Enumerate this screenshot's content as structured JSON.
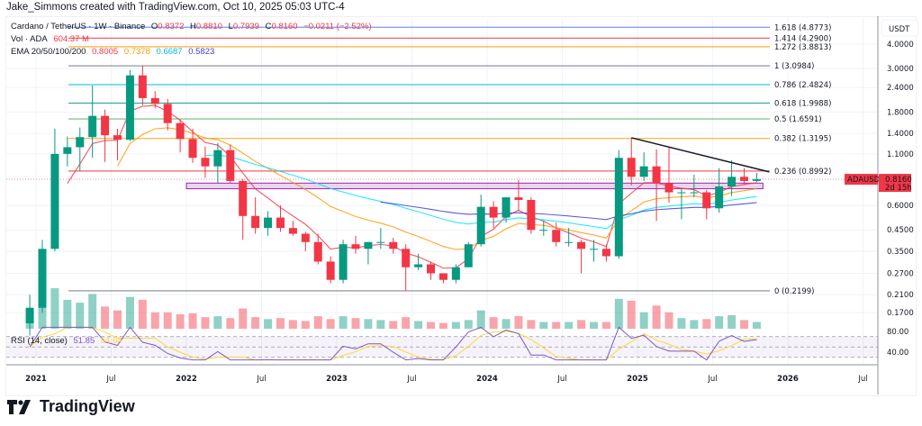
{
  "credit": "Jake_Simmons created with TradingView.com, Oct 10, 2025 05:03 UTC-4",
  "legend": {
    "symbol": "Cardano / TetherUS · 1W · Binance",
    "open_label": "O",
    "open": "0.8372",
    "high_label": "H",
    "high": "0.8810",
    "low_label": "L",
    "low": "0.7939",
    "close_label": "C",
    "close": "0.8160",
    "change": "−0.0211 (−2.52%)",
    "vol_label": "Vol · ADA",
    "vol": "604.37 M",
    "ema_label": "EMA 20/50/100/200",
    "ema_values": [
      "0.8005",
      "0.7378",
      "0.6687",
      "0.5823"
    ],
    "rsi_label": "RSI (14, close)",
    "rsi": "51.85",
    "rsi_ma": "54.64"
  },
  "price_axis": {
    "currency": "USDT",
    "ticks": [
      "4.0000",
      "3.0000",
      "2.4000",
      "1.8000",
      "1.4000",
      "1.1000",
      "0.6000",
      "0.4500",
      "0.3500",
      "0.2700",
      "0.2100",
      "0.1700"
    ],
    "symbol_tag": "ADAUSDT",
    "last_price": "0.8160",
    "countdown": "2d 15h",
    "rsi_ticks": [
      "80.00",
      "40.00"
    ]
  },
  "time_axis": [
    "2021",
    "Jul",
    "2022",
    "Jul",
    "2023",
    "Jul",
    "2024",
    "Jul",
    "2025",
    "Jul",
    "2026",
    "Jul"
  ],
  "brand": "TradingView",
  "colors": {
    "up": "#089981",
    "down": "#f23645",
    "ema20": "#f23645",
    "ema50": "#ff9800",
    "ema100": "#00e5ff",
    "ema200": "#3d3dd8",
    "rsi": "#7e57c2",
    "rsi_ma": "#fdd835",
    "zone": "#9c27b0",
    "trend": "#131722"
  },
  "chart_data": {
    "type": "candlestick",
    "title": "Cardano / TetherUS · 1W · Binance",
    "y_scale": "log",
    "ylim": [
      0.16,
      5.0
    ],
    "grid": true,
    "periods": [
      "2020-12",
      "2021-01",
      "2021-02",
      "2021-03",
      "2021-04",
      "2021-05",
      "2021-06",
      "2021-07",
      "2021-08",
      "2021-09",
      "2021-10",
      "2021-11",
      "2021-12",
      "2022-01",
      "2022-02",
      "2022-03",
      "2022-04",
      "2022-05",
      "2022-06",
      "2022-07",
      "2022-08",
      "2022-09",
      "2022-10",
      "2022-11",
      "2022-12",
      "2023-01",
      "2023-02",
      "2023-03",
      "2023-04",
      "2023-05",
      "2023-06",
      "2023-07",
      "2023-08",
      "2023-09",
      "2023-10",
      "2023-11",
      "2023-12",
      "2024-01",
      "2024-02",
      "2024-03",
      "2024-04",
      "2024-05",
      "2024-06",
      "2024-07",
      "2024-08",
      "2024-09",
      "2024-10",
      "2024-11",
      "2024-12",
      "2025-01",
      "2025-02",
      "2025-03",
      "2025-04",
      "2025-05",
      "2025-06",
      "2025-07",
      "2025-08",
      "2025-09",
      "2025-10"
    ],
    "ohlc": [
      [
        0.15,
        0.21,
        0.13,
        0.18
      ],
      [
        0.18,
        0.4,
        0.17,
        0.36
      ],
      [
        0.36,
        1.48,
        0.35,
        1.1
      ],
      [
        1.1,
        1.35,
        0.95,
        1.19
      ],
      [
        1.19,
        1.5,
        0.9,
        1.34
      ],
      [
        1.34,
        2.46,
        1.05,
        1.72
      ],
      [
        1.72,
        1.85,
        1.0,
        1.37
      ],
      [
        1.37,
        1.48,
        1.02,
        1.3
      ],
      [
        1.3,
        2.95,
        1.28,
        2.77
      ],
      [
        2.77,
        3.1,
        1.95,
        2.12
      ],
      [
        2.12,
        2.3,
        1.88,
        1.98
      ],
      [
        1.98,
        2.1,
        1.45,
        1.58
      ],
      [
        1.58,
        1.65,
        1.12,
        1.31
      ],
      [
        1.31,
        1.48,
        0.99,
        1.05
      ],
      [
        1.05,
        1.2,
        0.83,
        0.95
      ],
      [
        0.95,
        1.25,
        0.78,
        1.15
      ],
      [
        1.15,
        1.23,
        0.78,
        0.8
      ],
      [
        0.8,
        0.82,
        0.4,
        0.53
      ],
      [
        0.53,
        0.66,
        0.43,
        0.46
      ],
      [
        0.46,
        0.56,
        0.42,
        0.52
      ],
      [
        0.52,
        0.6,
        0.44,
        0.46
      ],
      [
        0.46,
        0.5,
        0.42,
        0.43
      ],
      [
        0.43,
        0.44,
        0.35,
        0.39
      ],
      [
        0.39,
        0.43,
        0.3,
        0.31
      ],
      [
        0.31,
        0.33,
        0.24,
        0.25
      ],
      [
        0.25,
        0.4,
        0.24,
        0.38
      ],
      [
        0.38,
        0.42,
        0.34,
        0.36
      ],
      [
        0.36,
        0.39,
        0.3,
        0.39
      ],
      [
        0.39,
        0.46,
        0.36,
        0.39
      ],
      [
        0.39,
        0.41,
        0.34,
        0.36
      ],
      [
        0.36,
        0.38,
        0.22,
        0.29
      ],
      [
        0.29,
        0.34,
        0.28,
        0.3
      ],
      [
        0.3,
        0.31,
        0.25,
        0.27
      ],
      [
        0.27,
        0.27,
        0.24,
        0.25
      ],
      [
        0.25,
        0.3,
        0.24,
        0.29
      ],
      [
        0.29,
        0.39,
        0.29,
        0.38
      ],
      [
        0.38,
        0.68,
        0.37,
        0.59
      ],
      [
        0.59,
        0.63,
        0.46,
        0.52
      ],
      [
        0.52,
        0.66,
        0.49,
        0.66
      ],
      [
        0.66,
        0.81,
        0.56,
        0.64
      ],
      [
        0.64,
        0.66,
        0.43,
        0.45
      ],
      [
        0.45,
        0.5,
        0.42,
        0.45
      ],
      [
        0.45,
        0.49,
        0.37,
        0.39
      ],
      [
        0.39,
        0.46,
        0.37,
        0.39
      ],
      [
        0.39,
        0.4,
        0.27,
        0.36
      ],
      [
        0.36,
        0.4,
        0.31,
        0.36
      ],
      [
        0.36,
        0.38,
        0.31,
        0.33
      ],
      [
        0.33,
        1.15,
        0.32,
        1.05
      ],
      [
        1.05,
        1.33,
        0.76,
        0.84
      ],
      [
        0.84,
        1.12,
        0.8,
        0.95
      ],
      [
        0.95,
        1.16,
        0.5,
        0.78
      ],
      [
        0.78,
        1.2,
        0.62,
        0.7
      ],
      [
        0.7,
        0.73,
        0.51,
        0.7
      ],
      [
        0.7,
        0.86,
        0.66,
        0.7
      ],
      [
        0.7,
        0.72,
        0.51,
        0.58
      ],
      [
        0.58,
        0.93,
        0.55,
        0.75
      ],
      [
        0.75,
        1.02,
        0.67,
        0.84
      ],
      [
        0.84,
        0.93,
        0.77,
        0.8
      ],
      [
        0.8,
        0.88,
        0.79,
        0.816
      ]
    ],
    "volume_m": [
      900,
      2600,
      4200,
      3000,
      2700,
      3600,
      2300,
      1900,
      3300,
      3000,
      1700,
      1700,
      1500,
      1600,
      1200,
      1300,
      1100,
      2100,
      1200,
      1000,
      1100,
      900,
      800,
      1300,
      1000,
      1300,
      1100,
      1000,
      900,
      800,
      1200,
      800,
      700,
      600,
      700,
      900,
      1900,
      1200,
      1000,
      1300,
      900,
      700,
      700,
      700,
      900,
      700,
      700,
      3100,
      2900,
      1700,
      2400,
      1700,
      1100,
      900,
      1000,
      1300,
      1400,
      900,
      700
    ],
    "fibonacci": [
      {
        "label": "1.618 (4.8773)",
        "price": 4.8773,
        "color": "#5b7cf0"
      },
      {
        "label": "1.414 (4.2900)",
        "price": 4.29,
        "color": "#f23645"
      },
      {
        "label": "1.272 (3.8813)",
        "price": 3.8813,
        "color": "#ff9800"
      },
      {
        "label": "1 (3.0984)",
        "price": 3.0984,
        "color": "#787b86"
      },
      {
        "label": "0.786 (2.4824)",
        "price": 2.4824,
        "color": "#00bcd4"
      },
      {
        "label": "0.618 (1.9988)",
        "price": 1.9988,
        "color": "#089981"
      },
      {
        "label": "0.5 (1.6591)",
        "price": 1.6591,
        "color": "#4caf50"
      },
      {
        "label": "0.382 (1.3195)",
        "price": 1.3195,
        "color": "#ff9800"
      },
      {
        "label": "0.236 (0.8992)",
        "price": 0.8992,
        "color": "#f23645"
      },
      {
        "label": "0 (0.2199)",
        "price": 0.2199,
        "color": "#787b86"
      }
    ],
    "support_zone": {
      "from": "2022-01",
      "to": "2025-11",
      "low": 0.73,
      "high": 0.78
    },
    "trendline": {
      "from": [
        "2024-12",
        1.33
      ],
      "to": [
        "2025-11",
        0.89
      ]
    },
    "ema_periods_weeks": [
      20,
      50,
      100,
      200
    ],
    "rsi_period_weeks": 14
  }
}
